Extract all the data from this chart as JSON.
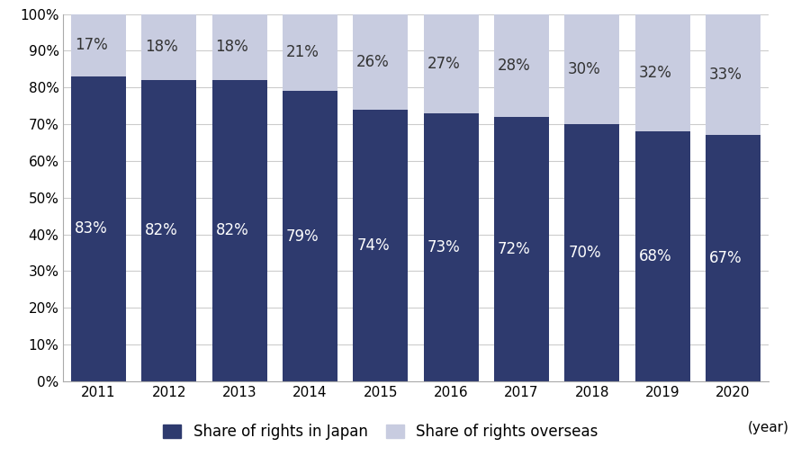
{
  "years": [
    "2011",
    "2012",
    "2013",
    "2014",
    "2015",
    "2016",
    "2017",
    "2018",
    "2019",
    "2020"
  ],
  "japan_values": [
    83,
    82,
    82,
    79,
    74,
    73,
    72,
    70,
    68,
    67
  ],
  "overseas_values": [
    17,
    18,
    18,
    21,
    26,
    27,
    28,
    30,
    32,
    33
  ],
  "japan_color": "#2E3A6E",
  "overseas_color": "#C8CCE0",
  "japan_label": "Share of rights in Japan",
  "overseas_label": "Share of rights overseas",
  "year_label": "(year)",
  "ylim": [
    0,
    100
  ],
  "yticks": [
    0,
    10,
    20,
    30,
    40,
    50,
    60,
    70,
    80,
    90,
    100
  ],
  "ytick_labels": [
    "0%",
    "10%",
    "20%",
    "30%",
    "40%",
    "50%",
    "60%",
    "70%",
    "80%",
    "90%",
    "100%"
  ],
  "tick_fontsize": 11,
  "annotation_japan_fontsize": 12,
  "annotation_overseas_fontsize": 12,
  "bar_width": 0.78,
  "background_color": "#ffffff",
  "grid_color": "#cccccc",
  "legend_fontsize": 12
}
